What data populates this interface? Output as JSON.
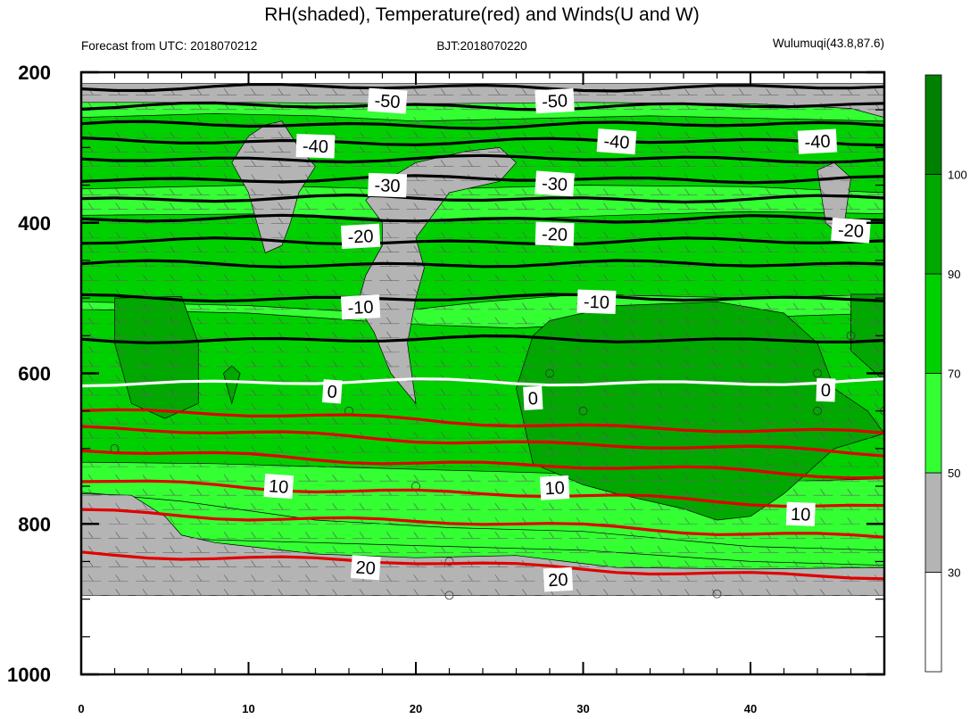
{
  "chart_data": {
    "type": "contour",
    "title": "RH(shaded), Temperature(red) and Winds(U and W)",
    "subtitle_left": "Forecast from UTC: 2018070212",
    "subtitle_center": "BJT:2018070220",
    "subtitle_right": "Wulumuqi(43.8,87.6)",
    "x_range": [
      0,
      48
    ],
    "x_ticks": [
      "0",
      "10",
      "20",
      "30",
      "40"
    ],
    "y_range": [
      1000,
      200
    ],
    "y_ticks": [
      "200",
      "400",
      "600",
      "800",
      "1000"
    ],
    "rh_levels": [
      "30",
      "50",
      "70",
      "90",
      "100"
    ],
    "rh_colors": [
      "#ffffff",
      "#b4b4b4",
      "#33ff33",
      "#00d000",
      "#00a800",
      "#008000"
    ],
    "temperature_contours": [
      {
        "value": -50,
        "pressure": 220,
        "color": "#000000"
      },
      {
        "value": -50,
        "pressure": 245,
        "color": "#000000"
      },
      {
        "value": -45,
        "pressure": 270,
        "color": "#000000"
      },
      {
        "value": -40,
        "pressure": 292,
        "color": "#000000"
      },
      {
        "value": -40,
        "pressure": 315,
        "color": "#000000"
      },
      {
        "value": -35,
        "pressure": 342,
        "color": "#000000"
      },
      {
        "value": -30,
        "pressure": 368,
        "color": "#000000"
      },
      {
        "value": -25,
        "pressure": 395,
        "color": "#000000"
      },
      {
        "value": -20,
        "pressure": 425,
        "color": "#000000"
      },
      {
        "value": -15,
        "pressure": 455,
        "color": "#000000"
      },
      {
        "value": -10,
        "pressure": 500,
        "color": "#000000"
      },
      {
        "value": -5,
        "pressure": 555,
        "color": "#000000"
      },
      {
        "value": 0,
        "pressure": 612,
        "color": "#ffffff"
      },
      {
        "value": 5,
        "pressure": 665,
        "color": "#e00000"
      },
      {
        "value": 5,
        "pressure": 690,
        "color": "#e00000"
      },
      {
        "value": 10,
        "pressure": 720,
        "color": "#e00000"
      },
      {
        "value": 10,
        "pressure": 760,
        "color": "#e00000"
      },
      {
        "value": 15,
        "pressure": 800,
        "color": "#e00000"
      },
      {
        "value": 20,
        "pressure": 855,
        "color": "#e00000"
      }
    ],
    "contour_labels": [
      {
        "text": "-50",
        "x": 18.3,
        "p": 238
      },
      {
        "text": "-50",
        "x": 28.3,
        "p": 238
      },
      {
        "text": "-40",
        "x": 14,
        "p": 298
      },
      {
        "text": "-40",
        "x": 32,
        "p": 292
      },
      {
        "text": "-40",
        "x": 44,
        "p": 292
      },
      {
        "text": "-30",
        "x": 18.3,
        "p": 350
      },
      {
        "text": "-30",
        "x": 28.3,
        "p": 348
      },
      {
        "text": "-20",
        "x": 16.7,
        "p": 418
      },
      {
        "text": "-20",
        "x": 28.3,
        "p": 415
      },
      {
        "text": "-20",
        "x": 46,
        "p": 410
      },
      {
        "text": "-10",
        "x": 16.7,
        "p": 512
      },
      {
        "text": "-10",
        "x": 30.8,
        "p": 505
      },
      {
        "text": "0",
        "x": 15,
        "p": 624
      },
      {
        "text": "0",
        "x": 27,
        "p": 633
      },
      {
        "text": "0",
        "x": 44.5,
        "p": 622
      },
      {
        "text": "10",
        "x": 11.8,
        "p": 750
      },
      {
        "text": "10",
        "x": 28.3,
        "p": 752
      },
      {
        "text": "10",
        "x": 43,
        "p": 787
      },
      {
        "text": "20",
        "x": 17,
        "p": 858
      },
      {
        "text": "20",
        "x": 28.5,
        "p": 874
      }
    ]
  }
}
